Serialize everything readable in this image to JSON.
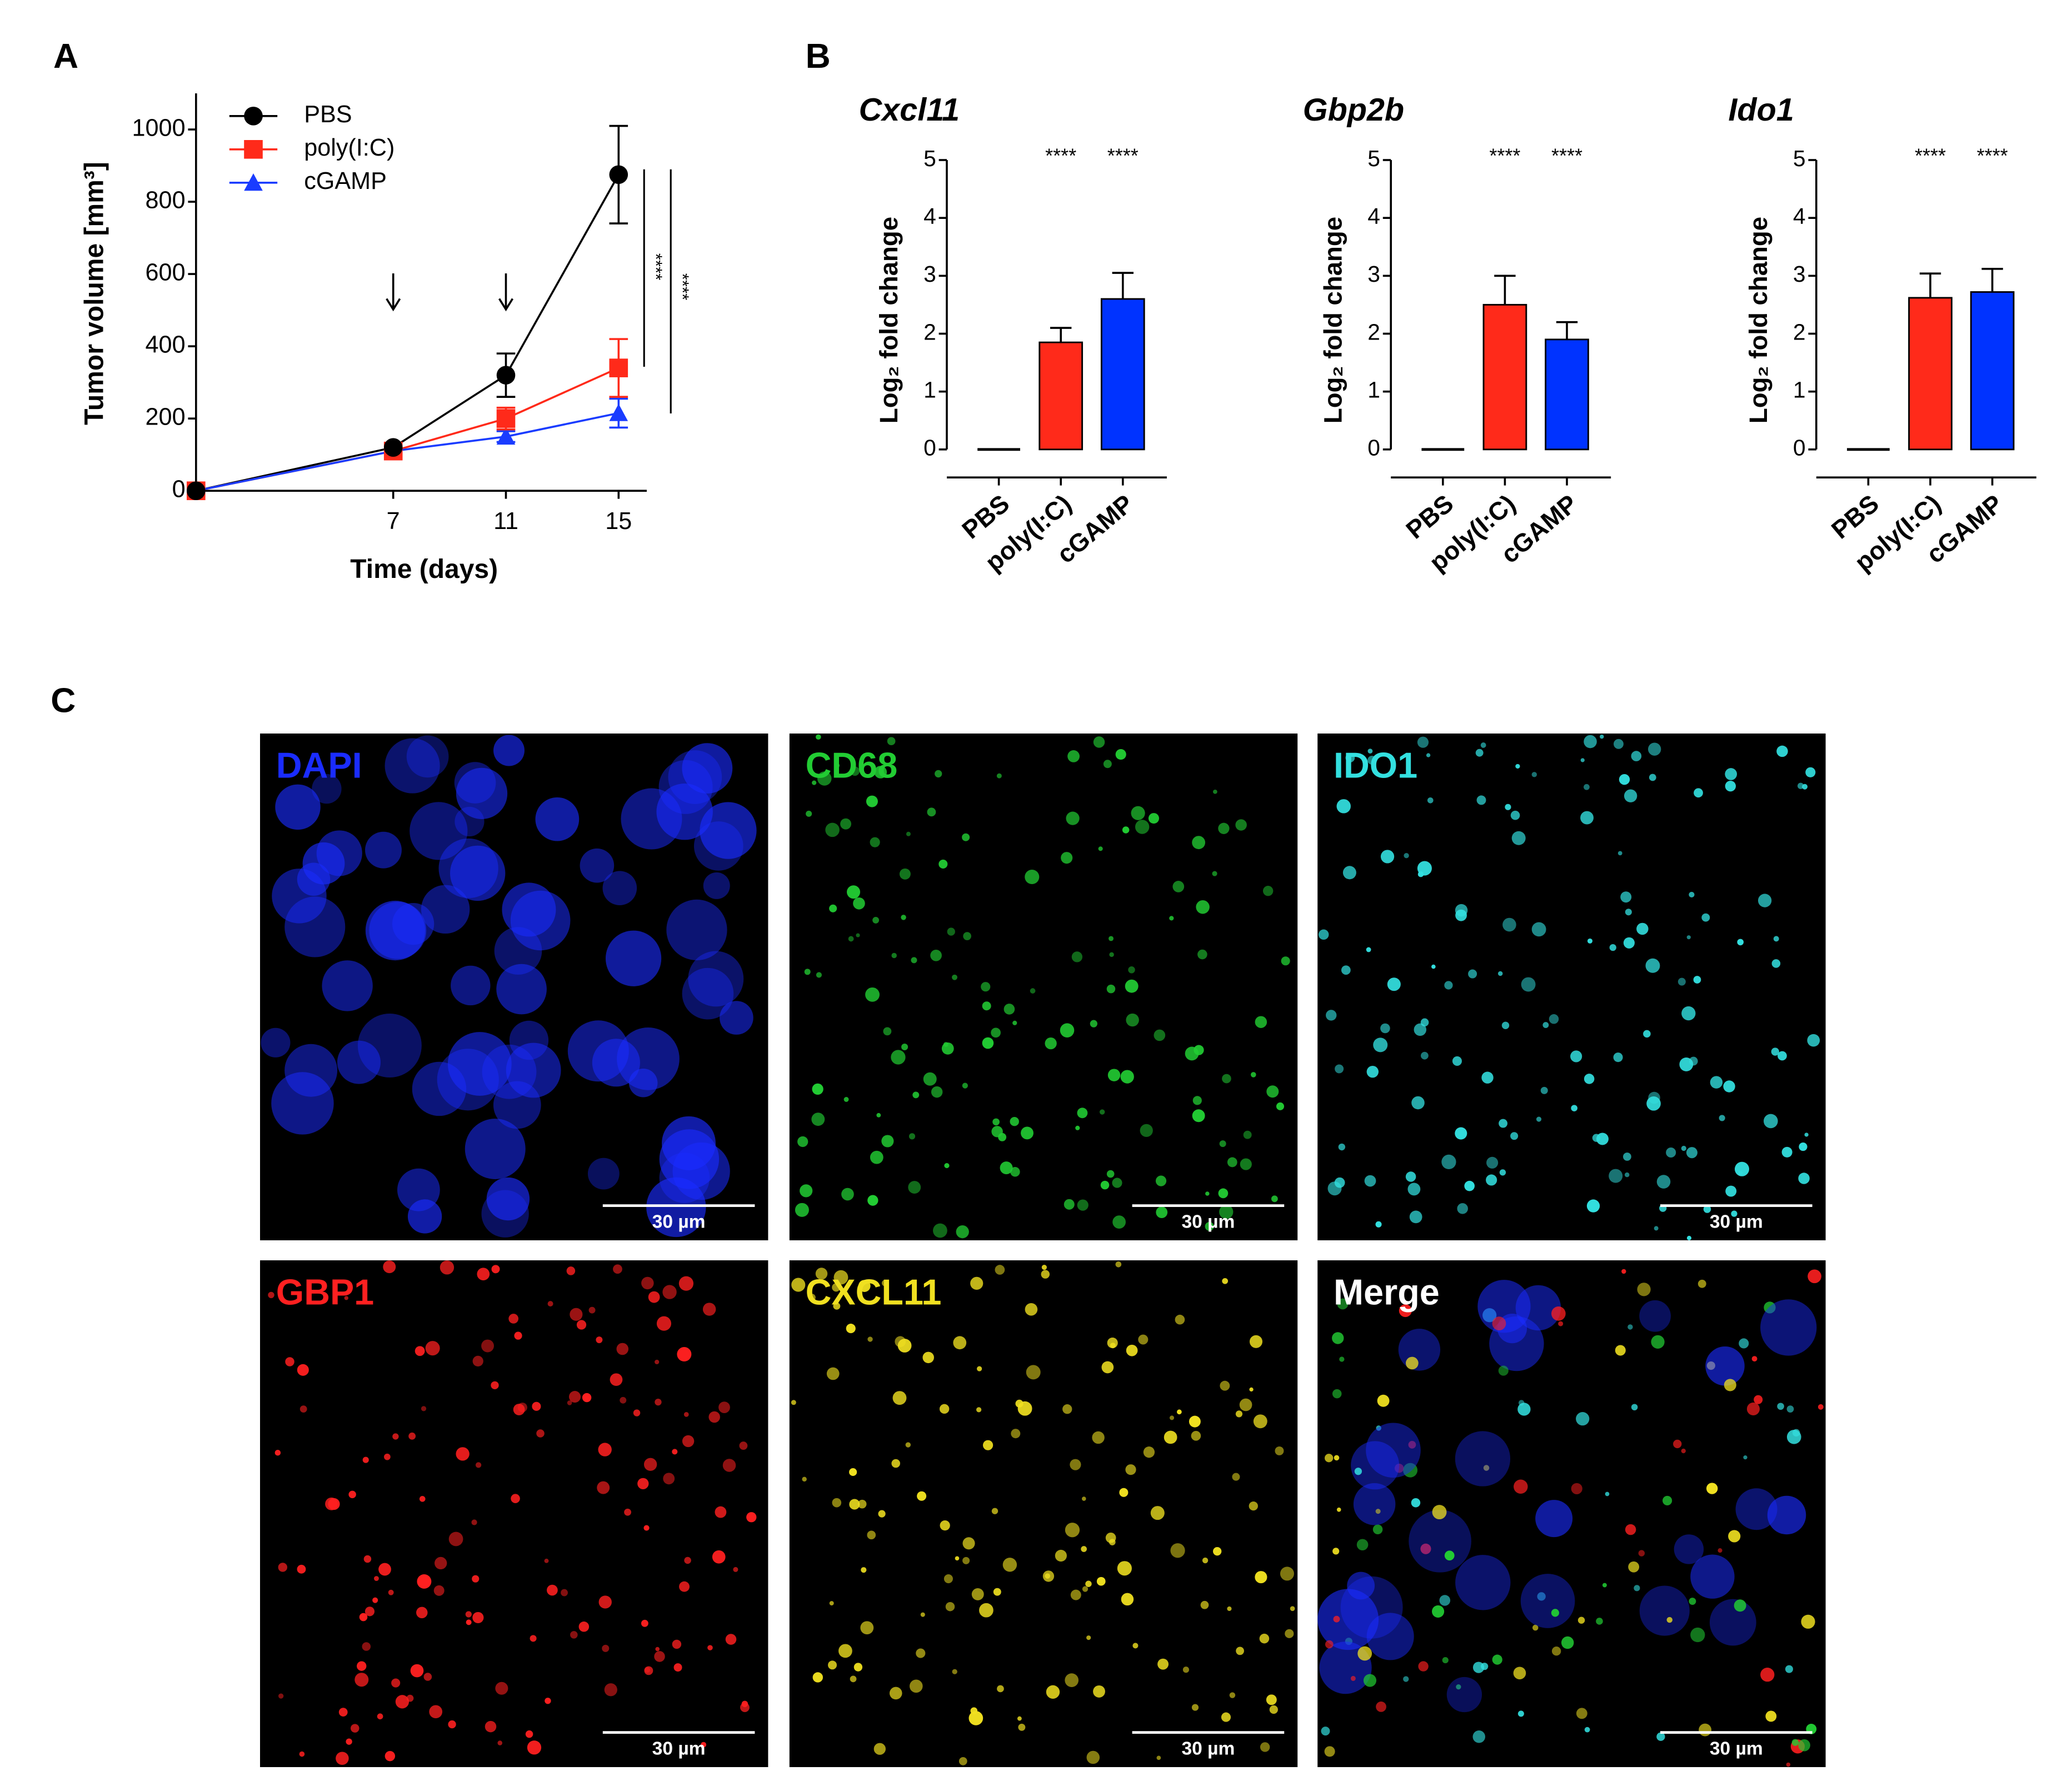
{
  "panel_labels": [
    "A",
    "B",
    "C"
  ],
  "chart_data": [
    {
      "type": "line",
      "x": [
        0,
        7,
        11,
        15
      ],
      "xlabel": "Time (days)",
      "ylabel": "Tumor volume [mm³]",
      "xlim": [
        0,
        16
      ],
      "xticks": [
        7,
        11,
        15
      ],
      "ylim": [
        0,
        1100
      ],
      "yticks": [
        0,
        200,
        400,
        600,
        800,
        1000
      ],
      "legend": "upper left",
      "treatment_days": [
        7,
        11
      ],
      "significance": [
        "****",
        "****"
      ],
      "series": [
        {
          "name": "PBS",
          "color": "#000000",
          "marker": "circle",
          "values": [
            0,
            120,
            320,
            875
          ],
          "errors": [
            0,
            0,
            60,
            135
          ]
        },
        {
          "name": "poly(I:C)",
          "color": "#ff2a1a",
          "marker": "square",
          "values": [
            0,
            110,
            200,
            340
          ],
          "errors": [
            0,
            0,
            30,
            80
          ]
        },
        {
          "name": "cGAMP",
          "color": "#1a3cff",
          "marker": "triangle",
          "values": [
            0,
            110,
            150,
            215
          ],
          "errors": [
            0,
            0,
            15,
            40
          ]
        }
      ]
    },
    {
      "type": "bar",
      "title": "Cxcl11",
      "ylabel": "Log₂ fold change",
      "categories": [
        "PBS",
        "poly(I:C)",
        "cGAMP"
      ],
      "values": [
        0,
        1.85,
        2.6
      ],
      "errors": [
        0,
        0.25,
        0.45
      ],
      "colors": [
        "#000000",
        "#ff2a1a",
        "#0033ff"
      ],
      "significance": [
        null,
        "****",
        "****"
      ],
      "ylim": [
        0,
        5
      ],
      "yticks": [
        0,
        1,
        2,
        3,
        4,
        5
      ]
    },
    {
      "type": "bar",
      "title": "Gbp2b",
      "ylabel": "Log₂ fold change",
      "categories": [
        "PBS",
        "poly(I:C)",
        "cGAMP"
      ],
      "values": [
        0,
        2.5,
        1.9
      ],
      "errors": [
        0,
        0.5,
        0.3
      ],
      "colors": [
        "#000000",
        "#ff2a1a",
        "#0033ff"
      ],
      "significance": [
        null,
        "****",
        "****"
      ],
      "ylim": [
        0,
        5
      ],
      "yticks": [
        0,
        1,
        2,
        3,
        4,
        5
      ]
    },
    {
      "type": "bar",
      "title": "Ido1",
      "ylabel": "Log₂ fold change",
      "categories": [
        "PBS",
        "poly(I:C)",
        "cGAMP"
      ],
      "values": [
        0,
        2.62,
        2.72
      ],
      "errors": [
        0,
        0.42,
        0.4
      ],
      "colors": [
        "#000000",
        "#ff2a1a",
        "#0033ff"
      ],
      "significance": [
        null,
        "****",
        "****"
      ],
      "ylim": [
        0,
        5
      ],
      "yticks": [
        0,
        1,
        2,
        3,
        4,
        5
      ]
    }
  ],
  "micrographs": [
    {
      "label": "DAPI",
      "color": "#1a2cff",
      "scale_bar": "30 µm"
    },
    {
      "label": "CD68",
      "color": "#22cc33",
      "scale_bar": "30 µm"
    },
    {
      "label": "IDO1",
      "color": "#33e0e0",
      "scale_bar": "30 µm"
    },
    {
      "label": "GBP1",
      "color": "#ff2020",
      "scale_bar": "30 µm"
    },
    {
      "label": "CXCL11",
      "color": "#f0e020",
      "scale_bar": "30 µm"
    },
    {
      "label": "Merge",
      "color": "#ffffff",
      "scale_bar": "30 µm"
    }
  ]
}
